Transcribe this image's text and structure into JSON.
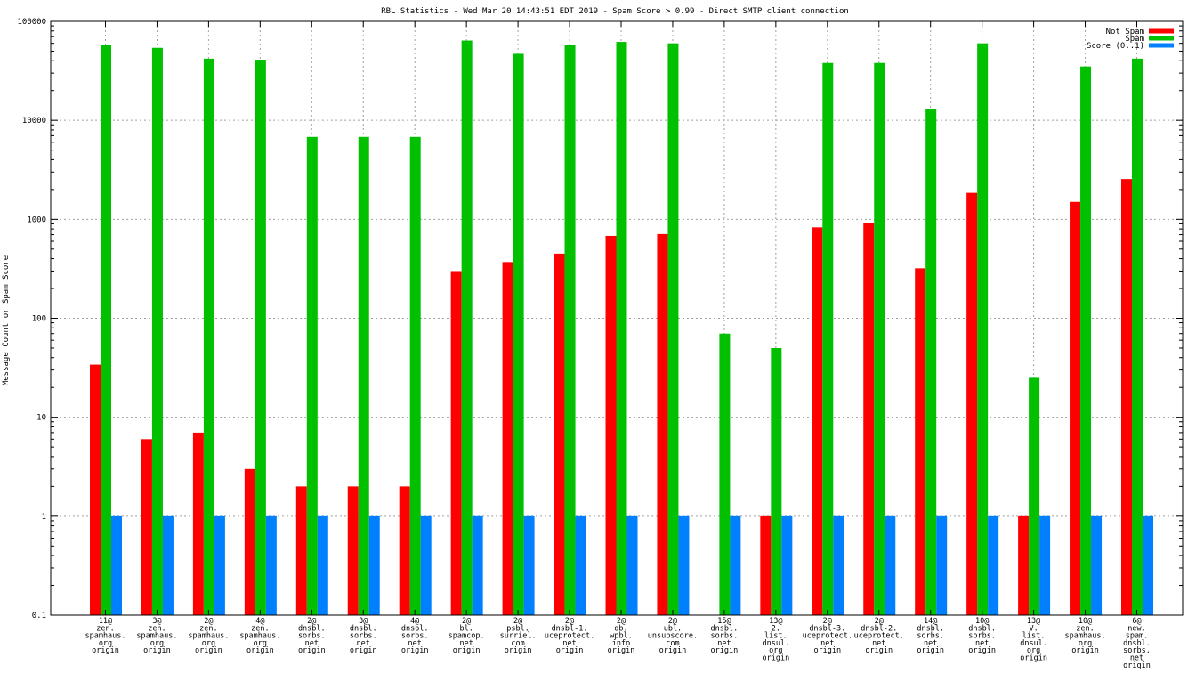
{
  "chart_data": {
    "type": "bar",
    "title": "RBL Statistics - Wed Mar 20 14:43:51 EDT 2019 - Spam Score > 0.99 - Direct SMTP client connection",
    "xlabel": "",
    "ylabel": "Message Count or Spam Score",
    "yscale": "log",
    "ylim": [
      0.1,
      100000
    ],
    "yticks": [
      "0.1",
      "1",
      "10",
      "100",
      "1000",
      "10000",
      "100000"
    ],
    "grid": true,
    "legend_position": "top-right",
    "categories": [
      [
        "11@",
        "zen.",
        "spamhaus.",
        "org",
        "origin"
      ],
      [
        "3@",
        "zen.",
        "spamhaus.",
        "org",
        "origin"
      ],
      [
        "2@",
        "zen.",
        "spamhaus.",
        "org",
        "origin"
      ],
      [
        "4@",
        "zen.",
        "spamhaus.",
        "org",
        "origin"
      ],
      [
        "2@",
        "dnsbl.",
        "sorbs.",
        "net",
        "origin"
      ],
      [
        "3@",
        "dnsbl.",
        "sorbs.",
        "net",
        "origin"
      ],
      [
        "4@",
        "dnsbl.",
        "sorbs.",
        "net",
        "origin"
      ],
      [
        "2@",
        "bl.",
        "spamcop.",
        "net",
        "origin"
      ],
      [
        "2@",
        "psbl.",
        "surriel.",
        "com",
        "origin"
      ],
      [
        "2@",
        "dnsbl-1.",
        "uceprotect.",
        "net",
        "origin"
      ],
      [
        "2@",
        "db.",
        "wpbl.",
        "info",
        "origin"
      ],
      [
        "2@",
        "ubl.",
        "unsubscore.",
        "com",
        "origin"
      ],
      [
        "15@",
        "dnsbl.",
        "sorbs.",
        "net",
        "origin"
      ],
      [
        "13@",
        "2.",
        "list.",
        "dnsul.",
        "org",
        "origin"
      ],
      [
        "2@",
        "dnsbl-3.",
        "uceprotect.",
        "net",
        "origin"
      ],
      [
        "2@",
        "dnsbl-2.",
        "uceprotect.",
        "net",
        "origin"
      ],
      [
        "14@",
        "dnsbl.",
        "sorbs.",
        "net",
        "origin"
      ],
      [
        "10@",
        "dnsbl.",
        "sorbs.",
        "net",
        "origin"
      ],
      [
        "13@",
        "V.",
        "list.",
        "dnsul.",
        "org",
        "origin"
      ],
      [
        "10@",
        "zen.",
        "spamhaus.",
        "org",
        "origin"
      ],
      [
        "6@",
        "new.",
        "spam.",
        "dnsbl.",
        "sorbs.",
        "net",
        "origin"
      ]
    ],
    "series": [
      {
        "name": "Not Spam",
        "color": "#ff0000",
        "values": [
          34,
          6,
          7,
          3,
          2,
          2,
          2,
          300,
          370,
          450,
          680,
          710,
          null,
          1,
          830,
          920,
          320,
          1850,
          1,
          1500,
          2550
        ]
      },
      {
        "name": "Spam",
        "color": "#00c000",
        "values": [
          58000,
          54000,
          42000,
          41000,
          6800,
          6800,
          6800,
          64000,
          47000,
          58000,
          62000,
          60000,
          70,
          50,
          38000,
          38000,
          13000,
          60000,
          25,
          35000,
          42000
        ]
      },
      {
        "name": "Score (0..1)",
        "color": "#0080ff",
        "values": [
          1,
          1,
          1,
          1,
          1,
          1,
          1,
          1,
          1,
          1,
          1,
          1,
          1,
          1,
          1,
          1,
          1,
          1,
          1,
          1,
          1
        ]
      }
    ]
  }
}
